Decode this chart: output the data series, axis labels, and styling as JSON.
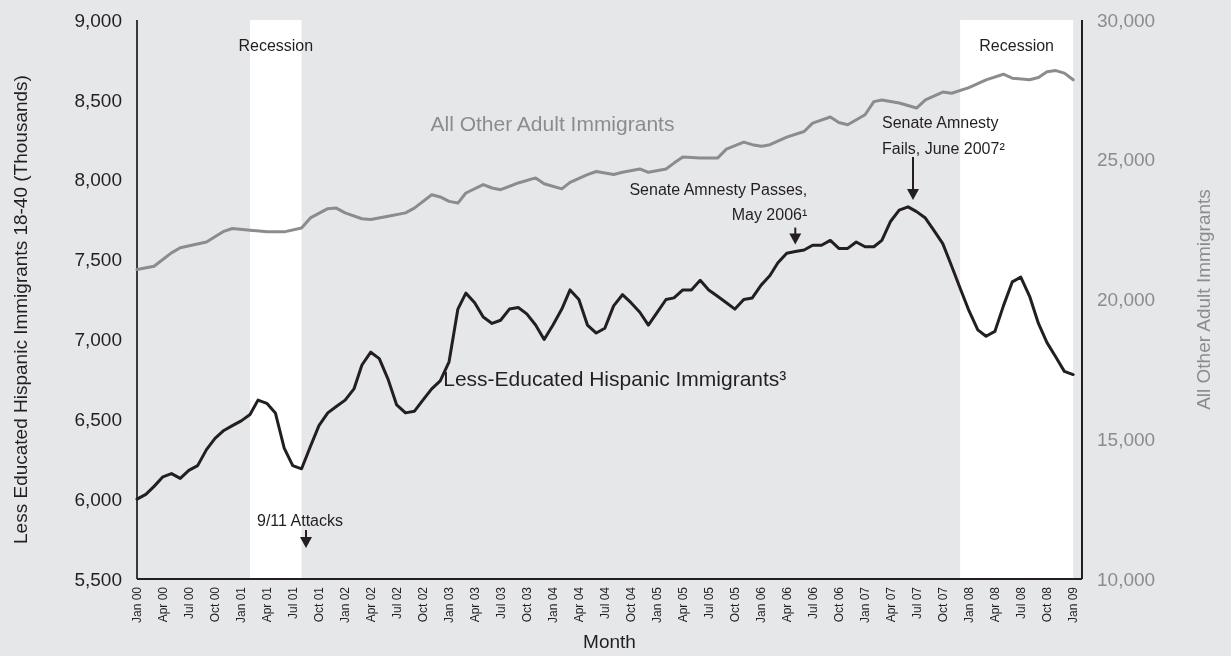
{
  "chart_data": {
    "type": "line",
    "xlabel": "Month",
    "ylabel": "Less Educated Hispanic Immigrants 18-40 (Thousands)",
    "y2label": "All Other Adult Immigrants",
    "x": [
      "2000-01",
      "2000-02",
      "2000-03",
      "2000-04",
      "2000-05",
      "2000-06",
      "2000-07",
      "2000-08",
      "2000-09",
      "2000-10",
      "2000-11",
      "2000-12",
      "2001-01",
      "2001-02",
      "2001-03",
      "2001-04",
      "2001-05",
      "2001-06",
      "2001-07",
      "2001-08",
      "2001-09",
      "2001-10",
      "2001-11",
      "2001-12",
      "2002-01",
      "2002-02",
      "2002-03",
      "2002-04",
      "2002-05",
      "2002-06",
      "2002-07",
      "2002-08",
      "2002-09",
      "2002-10",
      "2002-11",
      "2002-12",
      "2003-01",
      "2003-02",
      "2003-03",
      "2003-04",
      "2003-05",
      "2003-06",
      "2003-07",
      "2003-08",
      "2003-09",
      "2003-10",
      "2003-11",
      "2003-12",
      "2004-01",
      "2004-02",
      "2004-03",
      "2004-04",
      "2004-05",
      "2004-06",
      "2004-07",
      "2004-08",
      "2004-09",
      "2004-10",
      "2004-11",
      "2004-12",
      "2005-01",
      "2005-02",
      "2005-03",
      "2005-04",
      "2005-05",
      "2005-06",
      "2005-07",
      "2005-08",
      "2005-09",
      "2005-10",
      "2005-11",
      "2005-12",
      "2006-01",
      "2006-02",
      "2006-03",
      "2006-04",
      "2006-05",
      "2006-06",
      "2006-07",
      "2006-08",
      "2006-09",
      "2006-10",
      "2006-11",
      "2006-12",
      "2007-01",
      "2007-02",
      "2007-03",
      "2007-04",
      "2007-05",
      "2007-06",
      "2007-07",
      "2007-08",
      "2007-09",
      "2007-10",
      "2007-11",
      "2007-12",
      "2008-01",
      "2008-02",
      "2008-03",
      "2008-04",
      "2008-05",
      "2008-06",
      "2008-07",
      "2008-08",
      "2008-09",
      "2008-10",
      "2008-11",
      "2008-12",
      "2009-01"
    ],
    "series": [
      {
        "name": "Less-Educated Hispanic Immigrants³",
        "color": "#231f20",
        "values": [
          6000,
          6030,
          6080,
          6140,
          6160,
          6130,
          6180,
          6210,
          6310,
          6380,
          6430,
          6460,
          6490,
          6530,
          6620,
          6600,
          6540,
          6320,
          6210,
          6190,
          6330,
          6460,
          6540,
          6580,
          6620,
          6690,
          6840,
          6920,
          6880,
          6750,
          6590,
          6540,
          6550,
          6620,
          6690,
          6740,
          6860,
          7190,
          7290,
          7230,
          7140,
          7100,
          7120,
          7190,
          7200,
          7160,
          7090,
          7000,
          7090,
          7190,
          7310,
          7250,
          7090,
          7040,
          7070,
          7210,
          7280,
          7230,
          7170,
          7090,
          7170,
          7250,
          7260,
          7310,
          7310,
          7370,
          7310,
          7270,
          7230,
          7190,
          7250,
          7260,
          7340,
          7400,
          7480,
          7540,
          7550,
          7560,
          7590,
          7590,
          7620,
          7570,
          7570,
          7610,
          7580,
          7580,
          7620,
          7740,
          7810,
          7830,
          7800,
          7760,
          7680,
          7600,
          7460,
          7320,
          7180,
          7060,
          7020,
          7050,
          7210,
          7360,
          7390,
          7270,
          7100,
          6980,
          6890,
          6800,
          6780
        ]
      },
      {
        "name": "All Other Adult Immigrants",
        "color": "#8c8c8e",
        "axis": "y2",
        "x": [
          "2000-01",
          "2000-03",
          "2000-05",
          "2000-06",
          "2000-09",
          "2000-11",
          "2000-12",
          "2001-02",
          "2001-04",
          "2001-06",
          "2001-08",
          "2001-09",
          "2001-11",
          "2001-12",
          "2002-01",
          "2002-03",
          "2002-04",
          "2002-06",
          "2002-08",
          "2002-09",
          "2002-11",
          "2002-12",
          "2003-01",
          "2003-02",
          "2003-03",
          "2003-05",
          "2003-06",
          "2003-07",
          "2003-09",
          "2003-11",
          "2003-12",
          "2004-02",
          "2004-03",
          "2004-05",
          "2004-06",
          "2004-08",
          "2004-09",
          "2004-11",
          "2004-12",
          "2005-02",
          "2005-03",
          "2005-04",
          "2005-06",
          "2005-08",
          "2005-09",
          "2005-11",
          "2005-12",
          "2006-01",
          "2006-02",
          "2006-04",
          "2006-06",
          "2006-07",
          "2006-09",
          "2006-10",
          "2006-11",
          "2007-01",
          "2007-02",
          "2007-03",
          "2007-05",
          "2007-07",
          "2007-08",
          "2007-10",
          "2007-11",
          "2008-01",
          "2008-03",
          "2008-05",
          "2008-06",
          "2008-08",
          "2008-09",
          "2008-10",
          "2008-11",
          "2008-12",
          "2009-01"
        ],
        "values": [
          21070,
          21190,
          21670,
          21850,
          22060,
          22440,
          22540,
          22480,
          22420,
          22420,
          22560,
          22920,
          23250,
          23270,
          23100,
          22890,
          22860,
          22980,
          23100,
          23270,
          23750,
          23670,
          23510,
          23450,
          23810,
          24110,
          23990,
          23930,
          24170,
          24350,
          24140,
          23960,
          24190,
          24470,
          24580,
          24470,
          24550,
          24670,
          24550,
          24670,
          24880,
          25100,
          25060,
          25060,
          25380,
          25630,
          25540,
          25480,
          25540,
          25810,
          26010,
          26310,
          26530,
          26330,
          26250,
          26610,
          27080,
          27140,
          27030,
          26850,
          27140,
          27420,
          27380,
          27580,
          27860,
          28060,
          27920,
          27860,
          27940,
          28150,
          28190,
          28100,
          27860
        ]
      }
    ],
    "xlim": [
      "2000-01",
      "2009-02"
    ],
    "xticks": [
      {
        "value": "2000-01",
        "label": "Jan 00"
      },
      {
        "value": "2000-04",
        "label": "Apr 00"
      },
      {
        "value": "2000-07",
        "label": "Jul 00"
      },
      {
        "value": "2000-10",
        "label": "Oct 00"
      },
      {
        "value": "2001-01",
        "label": "Jan 01"
      },
      {
        "value": "2001-04",
        "label": "Apr 01"
      },
      {
        "value": "2001-07",
        "label": "Jul 01"
      },
      {
        "value": "2001-10",
        "label": "Oct 01"
      },
      {
        "value": "2002-01",
        "label": "Jan 02"
      },
      {
        "value": "2002-04",
        "label": "Apr 02"
      },
      {
        "value": "2002-07",
        "label": "Jul 02"
      },
      {
        "value": "2002-10",
        "label": "Oct 02"
      },
      {
        "value": "2003-01",
        "label": "Jan 03"
      },
      {
        "value": "2003-04",
        "label": "Apr 03"
      },
      {
        "value": "2003-07",
        "label": "Jul 03"
      },
      {
        "value": "2003-10",
        "label": "Oct 03"
      },
      {
        "value": "2004-01",
        "label": "Jan 04"
      },
      {
        "value": "2004-04",
        "label": "Apr 04"
      },
      {
        "value": "2004-07",
        "label": "Jul 04"
      },
      {
        "value": "2004-10",
        "label": "Oct 04"
      },
      {
        "value": "2005-01",
        "label": "Jan 05"
      },
      {
        "value": "2005-04",
        "label": "Apr 05"
      },
      {
        "value": "2005-07",
        "label": "Jul 05"
      },
      {
        "value": "2005-10",
        "label": "Oct 05"
      },
      {
        "value": "2006-01",
        "label": "Jan 06"
      },
      {
        "value": "2006-04",
        "label": "Apr 06"
      },
      {
        "value": "2006-07",
        "label": "Jul 06"
      },
      {
        "value": "2006-10",
        "label": "Oct 06"
      },
      {
        "value": "2007-01",
        "label": "Jan 07"
      },
      {
        "value": "2007-04",
        "label": "Apr 07"
      },
      {
        "value": "2007-07",
        "label": "Jul 07"
      },
      {
        "value": "2007-10",
        "label": "Oct 07"
      },
      {
        "value": "2008-01",
        "label": "Jan 08"
      },
      {
        "value": "2008-04",
        "label": "Apr 08"
      },
      {
        "value": "2008-07",
        "label": "Jul 08"
      },
      {
        "value": "2008-10",
        "label": "Oct 08"
      },
      {
        "value": "2009-01",
        "label": "Jan 09"
      }
    ],
    "ylim": [
      5500,
      9000
    ],
    "yticks": [
      {
        "value": 5500,
        "label": "5,500"
      },
      {
        "value": 6000,
        "label": "6,000"
      },
      {
        "value": 6500,
        "label": "6,500"
      },
      {
        "value": 7000,
        "label": "7,000"
      },
      {
        "value": 7500,
        "label": "7,500"
      },
      {
        "value": 8000,
        "label": "8,000"
      },
      {
        "value": 8500,
        "label": "8,500"
      },
      {
        "value": 9000,
        "label": "9,000"
      }
    ],
    "y2lim": [
      10000,
      30000
    ],
    "y2ticks": [
      {
        "value": 10000,
        "label": "10,000"
      },
      {
        "value": 15000,
        "label": "15,000"
      },
      {
        "value": 20000,
        "label": "20,000"
      },
      {
        "value": 25000,
        "label": "25,000"
      },
      {
        "value": 30000,
        "label": "30,000"
      }
    ],
    "bands": [
      {
        "axis": "x",
        "from": "2001-02",
        "to": "2001-08",
        "label": "Recession",
        "color": "#ffffff"
      },
      {
        "axis": "x",
        "from": "2007-12",
        "to": "2009-01",
        "label": "Recession",
        "color": "#ffffff"
      }
    ],
    "annotations": [
      {
        "text": "Senate Amnesty Passes,\nMay 2006¹",
        "x": "2006-05",
        "y": 7550
      },
      "Senate Amnesty\nFails, June 2007²",
      "9/11 Attacks"
    ]
  }
}
